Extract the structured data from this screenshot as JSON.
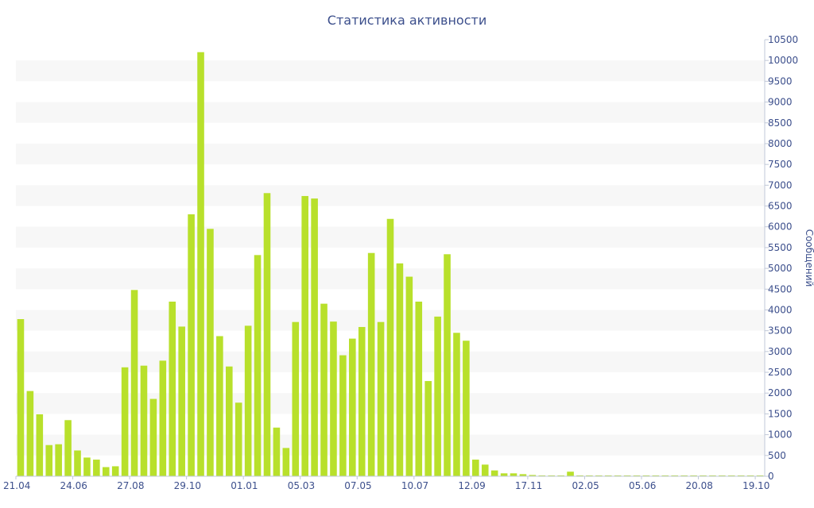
{
  "chart_data": {
    "type": "bar",
    "title": "Статистика активности",
    "xlabel": "",
    "ylabel": "Сообщений",
    "ylim": [
      0,
      10500
    ],
    "ytick_step": 500,
    "grid": "alternating horizontal bands",
    "y_axis_side": "right",
    "bar_color": "#b8e02b",
    "band_color": "#f7f7f7",
    "text_color": "#3c4f8c",
    "x_tick_labels": [
      "21.04",
      "24.06",
      "27.08",
      "29.10",
      "01.01",
      "05.03",
      "07.05",
      "10.07",
      "12.09",
      "17.11",
      "02.05",
      "05.06",
      "20.08",
      "19.10"
    ],
    "x_tick_label_bar_index": [
      0,
      6,
      12,
      18,
      24,
      30,
      36,
      42,
      48,
      54,
      60,
      66,
      72,
      78
    ],
    "values": [
      3780,
      2050,
      1490,
      750,
      770,
      1350,
      620,
      450,
      400,
      220,
      240,
      2620,
      4480,
      2660,
      1860,
      2780,
      4200,
      3600,
      6300,
      10200,
      5950,
      3370,
      2640,
      1770,
      3620,
      5320,
      6810,
      1170,
      680,
      3710,
      6740,
      6680,
      4150,
      3720,
      2910,
      3310,
      3590,
      5370,
      3710,
      6190,
      5120,
      4800,
      4200,
      2290,
      3840,
      5340,
      3450,
      3260,
      400,
      280,
      140,
      70,
      70,
      50,
      30,
      20,
      20,
      20,
      110,
      20,
      20,
      20,
      20,
      20,
      20,
      20,
      20,
      20,
      20,
      20,
      20,
      20,
      20,
      20,
      20,
      20,
      20,
      20,
      20
    ]
  }
}
